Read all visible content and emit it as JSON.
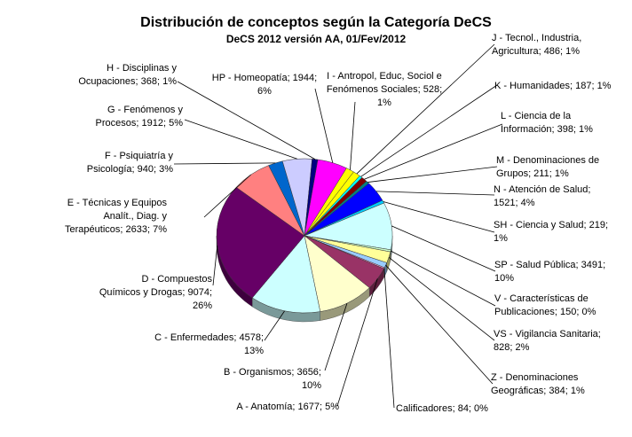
{
  "chart_data": {
    "type": "pie",
    "title": "Distribución de conceptos según la Categoría DeCS",
    "subtitle": "DeCS 2012 versión AA, 01/Fev/2012",
    "slices": [
      {
        "name": "J - Tecnol., Industria, Agricultura",
        "value": 486,
        "percent_label": "1%",
        "label_lines": [
          "J - Tecnol., Industria,",
          "Agricultura; 486; 1%"
        ],
        "color": "#ffff00"
      },
      {
        "name": "K - Humanidades",
        "value": 187,
        "percent_label": "1%",
        "label_lines": [
          "K - Humanidades; 187; 1%"
        ],
        "color": "#00ffff"
      },
      {
        "name": "L - Ciencia de la Información",
        "value": 398,
        "percent_label": "1%",
        "label_lines": [
          "L - Ciencia de la",
          "Información; 398; 1%"
        ],
        "color": "#800000"
      },
      {
        "name": "M - Denominaciones de Grupos",
        "value": 211,
        "percent_label": "1%",
        "label_lines": [
          "M - Denominaciones de",
          "Grupos; 211; 1%"
        ],
        "color": "#008080"
      },
      {
        "name": "N - Atención de Salud",
        "value": 1521,
        "percent_label": "4%",
        "label_lines": [
          "N - Atención de Salud;",
          "1521; 4%"
        ],
        "color": "#0000ff"
      },
      {
        "name": "SH - Ciencia y Salud",
        "value": 219,
        "percent_label": "1%",
        "label_lines": [
          "SH - Ciencia y Salud; 219;",
          "1%"
        ],
        "color": "#00ccff"
      },
      {
        "name": "SP - Salud Pública",
        "value": 3491,
        "percent_label": "10%",
        "label_lines": [
          "SP - Salud Pública; 3491;",
          "10%"
        ],
        "color": "#ccffff"
      },
      {
        "name": "V - Características de Publicaciones",
        "value": 150,
        "percent_label": "0%",
        "label_lines": [
          "V - Características de",
          "Publicaciones; 150; 0%"
        ],
        "color": "#ccffcc"
      },
      {
        "name": "VS - Vigilancia Sanitaria",
        "value": 828,
        "percent_label": "2%",
        "label_lines": [
          "VS - Vigilancia Sanitaria;",
          "828; 2%"
        ],
        "color": "#ffff99"
      },
      {
        "name": "Z - Denominaciones Geográficas",
        "value": 384,
        "percent_label": "1%",
        "label_lines": [
          "Z - Denominaciones",
          "Geográficas; 384; 1%"
        ],
        "color": "#99ccff"
      },
      {
        "name": "Calificadores",
        "value": 84,
        "percent_label": "0%",
        "label_lines": [
          "Calificadores; 84; 0%"
        ],
        "color": "#ff99cc"
      },
      {
        "name": "A - Anatomía",
        "value": 1677,
        "percent_label": "5%",
        "label_lines": [
          "A - Anatomía; 1677; 5%"
        ],
        "color": "#993366"
      },
      {
        "name": "B - Organismos",
        "value": 3656,
        "percent_label": "10%",
        "label_lines": [
          "B - Organismos; 3656;",
          "10%"
        ],
        "color": "#ffffcc"
      },
      {
        "name": "C - Enfermedades",
        "value": 4578,
        "percent_label": "13%",
        "label_lines": [
          "C - Enfermedades; 4578;",
          "13%"
        ],
        "color": "#ccffff"
      },
      {
        "name": "D - Compuestos Químicos y Drogas",
        "value": 9074,
        "percent_label": "26%",
        "label_lines": [
          "D - Compuestos",
          "Químicos y Drogas; 9074;",
          "26%"
        ],
        "color": "#660066"
      },
      {
        "name": "E - Técnicas y Equipos Analít., Diag. y Terapéuticos",
        "value": 2633,
        "percent_label": "7%",
        "label_lines": [
          "E - Técnicas y Equipos",
          "Analít., Diag. y",
          "Terapéuticos; 2633; 7%"
        ],
        "color": "#ff8080"
      },
      {
        "name": "F - Psiquiatría y Psicología",
        "value": 940,
        "percent_label": "3%",
        "label_lines": [
          "F - Psiquiatría y",
          "Psicología; 940; 3%"
        ],
        "color": "#0066cc"
      },
      {
        "name": "G - Fenómenos y Procesos",
        "value": 1912,
        "percent_label": "5%",
        "label_lines": [
          "G - Fenómenos y",
          "Procesos; 1912; 5%"
        ],
        "color": "#ccccff"
      },
      {
        "name": "H - Disciplinas y Ocupaciones",
        "value": 368,
        "percent_label": "1%",
        "label_lines": [
          "H - Disciplinas y",
          "Ocupaciones; 368; 1%"
        ],
        "color": "#000080"
      },
      {
        "name": "HP - Homeopatía",
        "value": 1944,
        "percent_label": "6%",
        "label_lines": [
          "HP - Homeopatía; 1944;",
          "6%"
        ],
        "color": "#ff00ff"
      },
      {
        "name": "I - Antropol, Educ, Sociol e Fenómenos Sociales",
        "value": 528,
        "percent_label": "1%",
        "label_lines": [
          "I - Antropol, Educ, Sociol e",
          "Fenómenos Sociales; 528;",
          "1%"
        ],
        "color": "#ffff00"
      }
    ],
    "start_slice": "J - Tecnol., Industria, Agricultura",
    "direction": "clockwise",
    "legend": "none",
    "label_style": "callouts with leader lines"
  }
}
